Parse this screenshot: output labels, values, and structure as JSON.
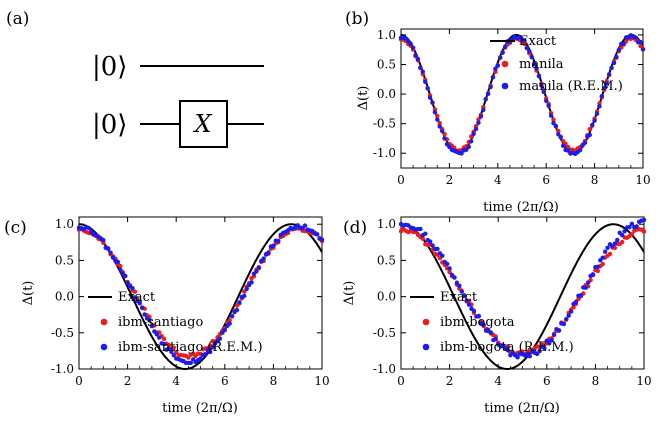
{
  "panel_a": {
    "label": "(a)",
    "circuit": {
      "qubits": [
        {
          "state": "|0⟩",
          "gates": []
        },
        {
          "state": "|0⟩",
          "gates": [
            "X"
          ]
        }
      ]
    }
  },
  "chart_data": [
    {
      "panel": "(b)",
      "type": "scatter",
      "xlabel": "time (2π/Ω)",
      "ylabel": "Δ(t)",
      "xlim": [
        0,
        10
      ],
      "ylim": [
        -1.25,
        1.1
      ],
      "xticks": [
        0,
        2,
        4,
        6,
        8,
        10
      ],
      "yticks": [
        -1.0,
        -0.5,
        0.0,
        0.5,
        1.0
      ],
      "ytick_labels": [
        "-1.0",
        "-0.5",
        "0.0",
        "0.5",
        "1.0"
      ],
      "grid": false,
      "legend_position": "top-right",
      "exact": {
        "name": "Exact",
        "color": "#000000",
        "omega_scale": 0.42,
        "amplitude": 1.0,
        "offset": 0.0
      },
      "series": [
        {
          "name": "manila",
          "color": "#ee1c1c",
          "omega_scale": 0.42,
          "amplitude": 0.94,
          "offset": -0.005,
          "noise": 0.02,
          "seed": 11
        },
        {
          "name": "manila (R.E.M.)",
          "color": "#1c1cee",
          "omega_scale": 0.42,
          "amplitude": 0.99,
          "offset": -0.02,
          "noise": 0.035,
          "seed": 23
        }
      ]
    },
    {
      "panel": "(c)",
      "type": "scatter",
      "xlabel": "time (2π/Ω)",
      "ylabel": "Δ(t)",
      "xlim": [
        0,
        10
      ],
      "ylim": [
        -1.0,
        1.1
      ],
      "xticks": [
        0,
        2,
        4,
        6,
        8,
        10
      ],
      "yticks": [
        -1.0,
        -0.5,
        0.0,
        0.5,
        1.0
      ],
      "ytick_labels": [
        "-1.0",
        "-0.5",
        "0.0",
        "0.5",
        "1.0"
      ],
      "grid": false,
      "legend_position": "bottom-left",
      "exact": {
        "name": "Exact",
        "color": "#000000",
        "omega_scale": 0.2289,
        "amplitude": 1.0,
        "offset": 0.0
      },
      "series": [
        {
          "name": "ibm-santiago",
          "color": "#ee1c1c",
          "omega_scale": 0.22,
          "amplitude": 0.88,
          "offset": 0.06,
          "noise": 0.03,
          "seed": 37
        },
        {
          "name": "ibm-santiago (R.E.M.)",
          "color": "#1c1cee",
          "omega_scale": 0.22,
          "amplitude": 0.93,
          "offset": 0.04,
          "noise": 0.035,
          "seed": 53
        }
      ]
    },
    {
      "panel": "(d)",
      "type": "scatter",
      "xlabel": "time (2π/Ω)",
      "ylabel": "Δ(t)",
      "xlim": [
        0,
        10
      ],
      "ylim": [
        -1.0,
        1.1
      ],
      "xticks": [
        0,
        2,
        4,
        6,
        8,
        10
      ],
      "yticks": [
        -1.0,
        -0.5,
        0.0,
        0.5,
        1.0
      ],
      "ytick_labels": [
        "-1.0",
        "-0.5",
        "0.0",
        "0.5",
        "1.0"
      ],
      "grid": false,
      "legend_position": "bottom-left",
      "exact": {
        "name": "Exact",
        "color": "#000000",
        "omega_scale": 0.2289,
        "amplitude": 1.0,
        "offset": 0.0
      },
      "series": [
        {
          "name": "ibm-bogota",
          "color": "#ee1c1c",
          "omega_scale": 0.2,
          "amplitude": 0.85,
          "offset": 0.07,
          "noise": 0.035,
          "seed": 71
        },
        {
          "name": "ibm-bogota (R.E.M.)",
          "color": "#1c1cee",
          "omega_scale": 0.2,
          "amplitude": 0.92,
          "offset": 0.1,
          "noise": 0.04,
          "seed": 97
        }
      ]
    }
  ]
}
